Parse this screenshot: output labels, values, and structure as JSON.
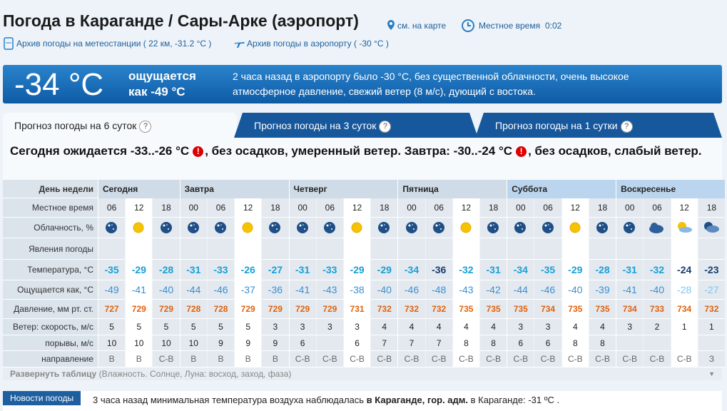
{
  "header": {
    "title": "Погода в Караганде / Сары-Арке (аэропорт)",
    "map_link": "см. на карте",
    "local_time_label": "Местное время",
    "local_time": "0:02",
    "archive_station": "Архив погоды на метеостанции ( 22 км, -31.2 °C )",
    "archive_airport": "Архив погоды в аэропорту ( -30 °C )"
  },
  "current": {
    "temperature": "-34 °C",
    "feels_label": "ощущается",
    "feels_value": "как -49 °C",
    "description": "2 часа назад в аэропорту было -30 °C, без существенной облачности, очень высокое атмосферное давление, свежий ветер (8 м/с), дующий с востока."
  },
  "tabs": [
    "Прогноз погоды на 6 суток",
    "Прогноз погоды на 3 суток",
    "Прогноз погоды на 1 сутки"
  ],
  "summary": {
    "part1": "Сегодня ожидается -33..-26 °C",
    "part2": ", без осадков, умеренный ветер. Завтра: -30..-24 °C",
    "part3": ", без осадков, слабый ветер."
  },
  "table": {
    "row_labels": [
      "День недели",
      "Местное время",
      "Облачность, %",
      "Явления погоды",
      "Температура, °C",
      "Ощущается как, °C",
      "Давление, мм рт. ст.",
      "Ветер: скорость, м/с",
      "порывы, м/с",
      "направление"
    ],
    "days": [
      {
        "name": "Сегодня",
        "times": [
          "06",
          "12",
          "18"
        ]
      },
      {
        "name": "Завтра",
        "times": [
          "00",
          "06",
          "12",
          "18"
        ]
      },
      {
        "name": "Четверг",
        "times": [
          "00",
          "06",
          "12",
          "18"
        ]
      },
      {
        "name": "Пятница",
        "times": [
          "00",
          "06",
          "12",
          "18"
        ]
      },
      {
        "name": "Суббота",
        "times": [
          "00",
          "06",
          "12",
          "18"
        ]
      },
      {
        "name": "Воскресенье",
        "times": [
          "00",
          "06",
          "12",
          "18"
        ]
      }
    ],
    "temperature": [
      -35,
      -29,
      -28,
      -31,
      -33,
      -26,
      -27,
      -31,
      -33,
      -29,
      -29,
      -34,
      -36,
      -32,
      -31,
      -34,
      -35,
      -29,
      -28,
      -31,
      -32,
      -24,
      -23
    ],
    "feels_like": [
      -49,
      -41,
      -40,
      -44,
      -46,
      -37,
      -36,
      -41,
      -43,
      -38,
      -40,
      -46,
      -48,
      -43,
      -42,
      -44,
      -46,
      -40,
      -39,
      -41,
      -40,
      -28,
      -27
    ],
    "pressure": [
      727,
      729,
      729,
      728,
      728,
      729,
      729,
      729,
      729,
      731,
      732,
      732,
      732,
      735,
      735,
      735,
      734,
      735,
      735,
      734,
      733,
      734,
      732
    ],
    "wind_speed": [
      5,
      5,
      5,
      5,
      5,
      5,
      3,
      3,
      3,
      3,
      4,
      4,
      4,
      4,
      4,
      3,
      3,
      4,
      4,
      3,
      2,
      1,
      1
    ],
    "wind_gusts": [
      10,
      10,
      10,
      10,
      9,
      9,
      9,
      6,
      null,
      6,
      7,
      7,
      7,
      8,
      8,
      6,
      6,
      8,
      8,
      null,
      null,
      null,
      null
    ],
    "wind_direction": [
      "В",
      "В",
      "С-В",
      "В",
      "В",
      "В",
      "В",
      "С-В",
      "С-В",
      "С-В",
      "С-В",
      "С-В",
      "С-В",
      "С-В",
      "С-В",
      "С-В",
      "С-В",
      "С-В",
      "С-В",
      "С-В",
      "С-В",
      "С-В",
      "З"
    ],
    "expand": "Развернуть таблицу",
    "expand_note": "(Влажность. Солнце, Луна: восход, заход, фаза)"
  },
  "news": {
    "tag": "Новости погоды",
    "text1": "3 часа назад минимальная температура воздуха наблюдалась ",
    "text2": "в Караганде, гор. адм.",
    "text3": " в Караганде: -31 ºC ."
  }
}
